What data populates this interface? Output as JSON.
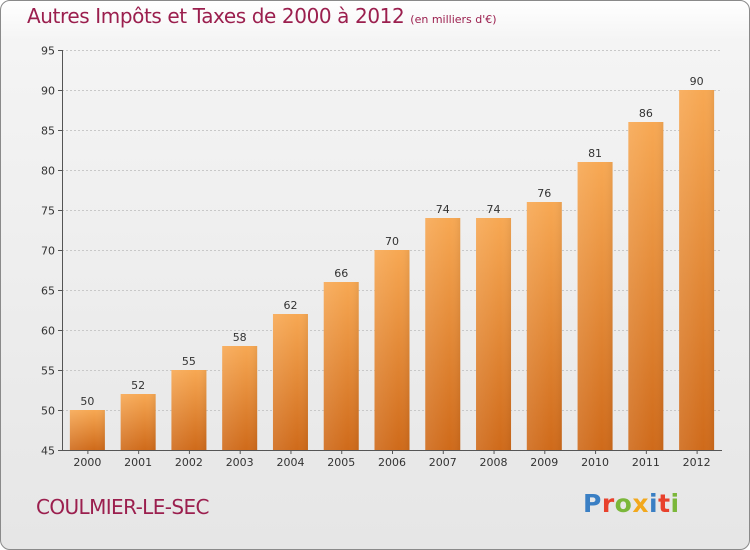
{
  "header": {
    "title": "Autres Impôts et Taxes de 2000 à 2012",
    "subtitle": "(en milliers d'€)"
  },
  "footer": {
    "location": "COULMIER-LE-SEC",
    "logo_text": "Proxiti",
    "logo_colors": [
      "#3a7fc4",
      "#e8412c",
      "#7bb73a",
      "#f2a81d",
      "#3a7fc4",
      "#e8412c",
      "#7bb73a"
    ]
  },
  "chart_data": {
    "type": "bar",
    "categories": [
      "2000",
      "2001",
      "2002",
      "2003",
      "2004",
      "2005",
      "2006",
      "2007",
      "2008",
      "2009",
      "2010",
      "2011",
      "2012"
    ],
    "values": [
      50,
      52,
      55,
      58,
      62,
      66,
      70,
      74,
      74,
      76,
      81,
      86,
      90
    ],
    "ylim": [
      45,
      95
    ],
    "yticks": [
      45,
      50,
      55,
      60,
      65,
      70,
      75,
      80,
      85,
      90,
      95
    ],
    "grid": true,
    "bar_color_top": "#f7a853",
    "bar_color_bottom": "#cf6a1a"
  }
}
